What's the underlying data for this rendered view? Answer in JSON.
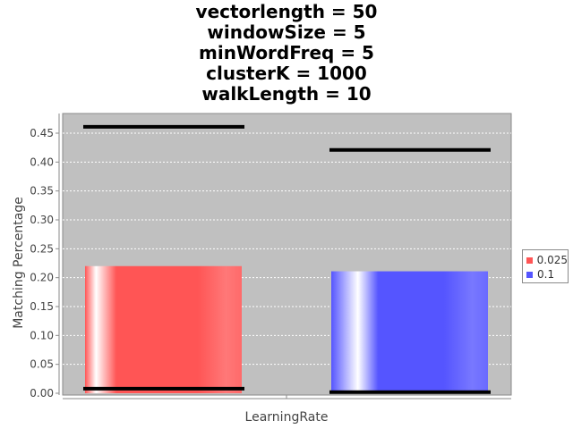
{
  "chart_data": {
    "type": "bar",
    "title_lines": [
      "vectorlength = 50",
      "windowSize = 5",
      "minWordFreq = 5",
      "clusterK = 1000",
      "walkLength = 10"
    ],
    "xlabel": "LearningRate",
    "ylabel": "Matching Percentage",
    "ylim": [
      0,
      0.485
    ],
    "yticks": [
      "0.00",
      "0.05",
      "0.10",
      "0.15",
      "0.20",
      "0.25",
      "0.30",
      "0.35",
      "0.40",
      "0.45"
    ],
    "grid": true,
    "legend_position": "right",
    "series": [
      {
        "name": "0.025",
        "value": 0.22,
        "min": 0.008,
        "max": 0.461,
        "color": "#ff5555"
      },
      {
        "name": "0.1",
        "value": 0.211,
        "min": 0.002,
        "max": 0.421,
        "color": "#5555ff"
      }
    ]
  }
}
